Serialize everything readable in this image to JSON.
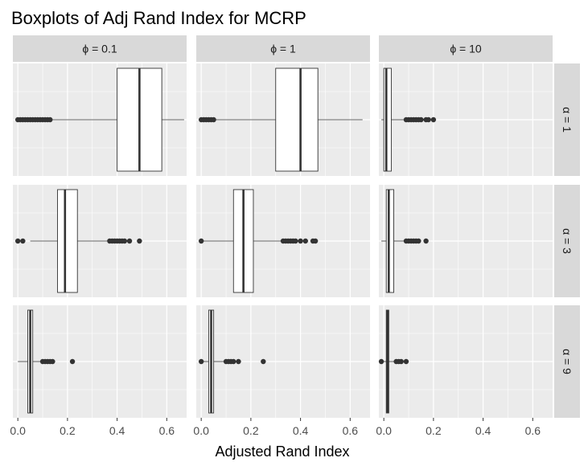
{
  "chart_data": {
    "type": "boxplot",
    "title": "Boxplots of Adj Rand Index for MCRP",
    "xlabel": "Adjusted Rand Index",
    "ylabel": "",
    "xlim": [
      -0.02,
      0.68
    ],
    "x_ticks": [
      0.0,
      0.2,
      0.4,
      0.6
    ],
    "x_tick_labels": [
      "0.0",
      "0.2",
      "0.4",
      "0.6"
    ],
    "grid": true,
    "facet_columns": [
      {
        "label": "ϕ = 0.1"
      },
      {
        "label": "ϕ = 1"
      },
      {
        "label": "ϕ = 10"
      }
    ],
    "facet_rows": [
      {
        "label": "α = 1"
      },
      {
        "label": "α = 3"
      },
      {
        "label": "α = 9"
      }
    ],
    "panels": [
      {
        "row": 0,
        "col": 0,
        "whisker_low": 0.14,
        "q1": 0.4,
        "median": 0.49,
        "q3": 0.58,
        "whisker_high": 0.67,
        "outliers": [
          0.0,
          0.01,
          0.02,
          0.03,
          0.04,
          0.05,
          0.06,
          0.07,
          0.08,
          0.09,
          0.1,
          0.11,
          0.12,
          0.13
        ]
      },
      {
        "row": 0,
        "col": 1,
        "whisker_low": 0.06,
        "q1": 0.3,
        "median": 0.4,
        "q3": 0.47,
        "whisker_high": 0.65,
        "outliers": [
          0.0,
          0.01,
          0.02,
          0.03,
          0.04,
          0.05
        ]
      },
      {
        "row": 0,
        "col": 2,
        "whisker_low": -0.01,
        "q1": 0.0,
        "median": 0.01,
        "q3": 0.03,
        "whisker_high": 0.08,
        "outliers": [
          0.09,
          0.1,
          0.11,
          0.12,
          0.13,
          0.14,
          0.15,
          0.17,
          0.18,
          0.2
        ]
      },
      {
        "row": 1,
        "col": 0,
        "whisker_low": 0.05,
        "q1": 0.16,
        "median": 0.19,
        "q3": 0.24,
        "whisker_high": 0.36,
        "outliers": [
          0.0,
          0.02,
          0.37,
          0.38,
          0.39,
          0.4,
          0.41,
          0.42,
          0.43,
          0.45,
          0.49
        ]
      },
      {
        "row": 1,
        "col": 1,
        "whisker_low": 0.0,
        "q1": 0.13,
        "median": 0.17,
        "q3": 0.21,
        "whisker_high": 0.32,
        "outliers": [
          0.0,
          0.33,
          0.34,
          0.35,
          0.36,
          0.37,
          0.38,
          0.4,
          0.42,
          0.45,
          0.46
        ]
      },
      {
        "row": 1,
        "col": 2,
        "whisker_low": -0.01,
        "q1": 0.01,
        "median": 0.02,
        "q3": 0.04,
        "whisker_high": 0.08,
        "outliers": [
          0.09,
          0.1,
          0.11,
          0.12,
          0.13,
          0.14,
          0.17
        ]
      },
      {
        "row": 2,
        "col": 0,
        "whisker_low": 0.0,
        "q1": 0.04,
        "median": 0.05,
        "q3": 0.06,
        "whisker_high": 0.09,
        "outliers": [
          0.1,
          0.11,
          0.12,
          0.13,
          0.14,
          0.22
        ]
      },
      {
        "row": 2,
        "col": 1,
        "whisker_low": 0.0,
        "q1": 0.03,
        "median": 0.04,
        "q3": 0.05,
        "whisker_high": 0.09,
        "outliers": [
          0.0,
          0.1,
          0.11,
          0.12,
          0.13,
          0.15,
          0.25
        ]
      },
      {
        "row": 2,
        "col": 2,
        "whisker_low": 0.0,
        "q1": 0.01,
        "median": 0.015,
        "q3": 0.02,
        "whisker_high": 0.04,
        "outliers": [
          -0.01,
          0.05,
          0.06,
          0.07,
          0.09
        ]
      }
    ],
    "colors": {
      "panel_bg": "#ebebeb",
      "grid": "#ffffff",
      "strip_bg": "#d9d9d9",
      "box_fill": "#ffffff",
      "box_line": "#333333",
      "outlier": "#333333",
      "tick_text": "#4d4d4d",
      "text": "#1a1a1a"
    }
  }
}
